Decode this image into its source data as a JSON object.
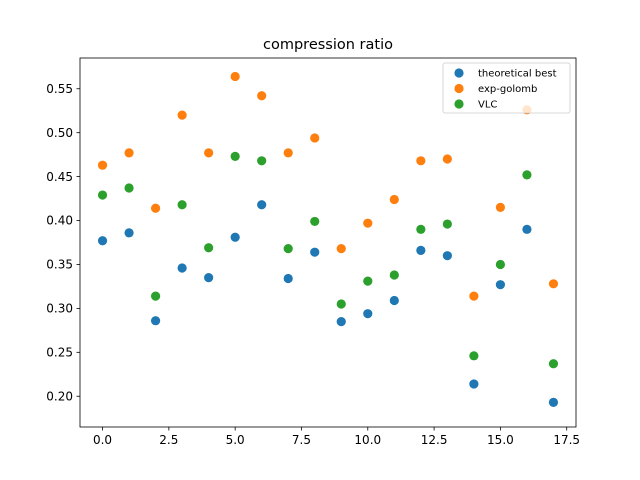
{
  "chart_data": {
    "type": "scatter",
    "title": "compression ratio",
    "xlabel": "",
    "ylabel": "",
    "xlim": [
      -0.85,
      17.85
    ],
    "ylim": [
      0.165,
      0.585
    ],
    "x_ticks": [
      0.0,
      2.5,
      5.0,
      7.5,
      10.0,
      12.5,
      15.0,
      17.5
    ],
    "x_tick_labels": [
      "0.0",
      "2.5",
      "5.0",
      "7.5",
      "10.0",
      "12.5",
      "15.0",
      "17.5"
    ],
    "y_ticks": [
      0.2,
      0.25,
      0.3,
      0.35,
      0.4,
      0.45,
      0.5,
      0.55
    ],
    "y_tick_labels": [
      "0.20",
      "0.25",
      "0.30",
      "0.35",
      "0.40",
      "0.45",
      "0.50",
      "0.55"
    ],
    "grid": false,
    "legend_position": "top-right",
    "x": [
      0,
      1,
      2,
      3,
      4,
      5,
      6,
      7,
      8,
      9,
      10,
      11,
      12,
      13,
      14,
      15,
      16,
      17
    ],
    "series": [
      {
        "name": "theoretical best",
        "color": "#1f77b4",
        "values": [
          0.377,
          0.386,
          0.286,
          0.346,
          0.335,
          0.381,
          0.418,
          0.334,
          0.364,
          0.285,
          0.294,
          0.309,
          0.366,
          0.36,
          0.214,
          0.327,
          0.39,
          0.193
        ]
      },
      {
        "name": "exp-golomb",
        "color": "#ff7f0e",
        "values": [
          0.463,
          0.477,
          0.414,
          0.52,
          0.477,
          0.564,
          0.542,
          0.477,
          0.494,
          0.368,
          0.397,
          0.424,
          0.468,
          0.47,
          0.314,
          0.415,
          0.526,
          0.328
        ]
      },
      {
        "name": "VLC",
        "color": "#2ca02c",
        "values": [
          0.429,
          0.437,
          0.314,
          0.418,
          0.369,
          0.473,
          0.468,
          0.368,
          0.399,
          0.305,
          0.331,
          0.338,
          0.39,
          0.396,
          0.246,
          0.35,
          0.452,
          0.237
        ]
      }
    ]
  }
}
